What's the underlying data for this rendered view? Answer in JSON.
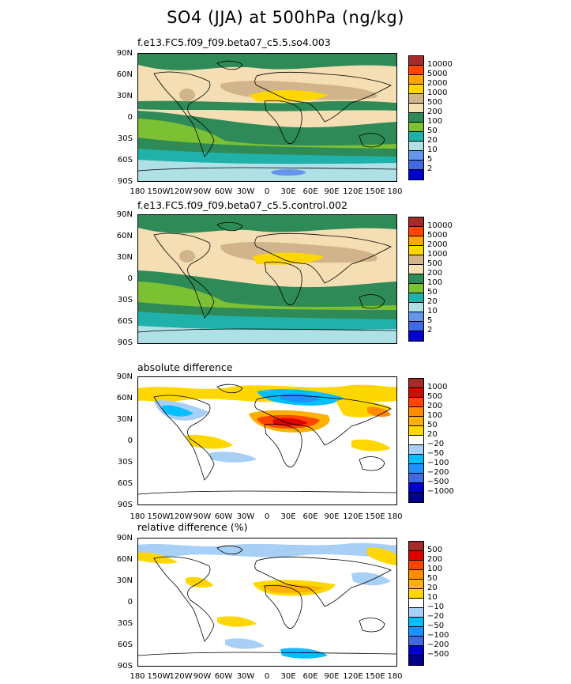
{
  "title": "SO4 (JJA) at 500hPa (ng/kg)",
  "lat_ticks": [
    "90N",
    "60N",
    "30N",
    "0",
    "30S",
    "60S",
    "90S"
  ],
  "lon_ticks": [
    "180",
    "150W",
    "120W",
    "90W",
    "60W",
    "30W",
    "0",
    "30E",
    "60E",
    "90E",
    "120E",
    "150E",
    "180"
  ],
  "panels": [
    {
      "title": "f.e13.FC5.f09_f09.beta07_c5.5.so4.003",
      "legend": [
        {
          "label": "10000",
          "color": "#a52a2a"
        },
        {
          "label": "5000",
          "color": "#ff4500"
        },
        {
          "label": "2000",
          "color": "#ffa500"
        },
        {
          "label": "1000",
          "color": "#ffd700"
        },
        {
          "label": "500",
          "color": "#d2b48c"
        },
        {
          "label": "200",
          "color": "#f5deb3"
        },
        {
          "label": "100",
          "color": "#2e8b57"
        },
        {
          "label": "50",
          "color": "#7cc034"
        },
        {
          "label": "20",
          "color": "#20b2aa"
        },
        {
          "label": "10",
          "color": "#afe0e6"
        },
        {
          "label": "5",
          "color": "#6495ed"
        },
        {
          "label": "2",
          "color": "#4169e1"
        },
        {
          "label": "",
          "color": "#0000cd"
        }
      ]
    },
    {
      "title": "f.e13.FC5.f09_f09.beta07_c5.5.control.002",
      "legend": [
        {
          "label": "10000",
          "color": "#a52a2a"
        },
        {
          "label": "5000",
          "color": "#ff4500"
        },
        {
          "label": "2000",
          "color": "#ffa500"
        },
        {
          "label": "1000",
          "color": "#ffd700"
        },
        {
          "label": "500",
          "color": "#d2b48c"
        },
        {
          "label": "200",
          "color": "#f5deb3"
        },
        {
          "label": "100",
          "color": "#2e8b57"
        },
        {
          "label": "50",
          "color": "#7cc034"
        },
        {
          "label": "20",
          "color": "#20b2aa"
        },
        {
          "label": "10",
          "color": "#afe0e6"
        },
        {
          "label": "5",
          "color": "#6495ed"
        },
        {
          "label": "2",
          "color": "#4169e1"
        },
        {
          "label": "",
          "color": "#0000cd"
        }
      ]
    },
    {
      "title": "absolute difference",
      "legend": [
        {
          "label": "1000",
          "color": "#a52a2a"
        },
        {
          "label": "500",
          "color": "#e00000"
        },
        {
          "label": "200",
          "color": "#ff4500"
        },
        {
          "label": "100",
          "color": "#ff8c00"
        },
        {
          "label": "50",
          "color": "#ffb000"
        },
        {
          "label": "20",
          "color": "#ffd700"
        },
        {
          "label": "−20",
          "color": "#ffffff"
        },
        {
          "label": "−50",
          "color": "#a8cff5"
        },
        {
          "label": "−100",
          "color": "#00bfff"
        },
        {
          "label": "−200",
          "color": "#1e90ff"
        },
        {
          "label": "−500",
          "color": "#4169e1"
        },
        {
          "label": "−1000",
          "color": "#0000cd"
        },
        {
          "label": "",
          "color": "#00008b"
        }
      ]
    },
    {
      "title": "relative difference (%)",
      "legend": [
        {
          "label": "500",
          "color": "#a52a2a"
        },
        {
          "label": "200",
          "color": "#e00000"
        },
        {
          "label": "100",
          "color": "#ff4500"
        },
        {
          "label": "50",
          "color": "#ff8c00"
        },
        {
          "label": "20",
          "color": "#ffb000"
        },
        {
          "label": "10",
          "color": "#ffd700"
        },
        {
          "label": "−10",
          "color": "#ffffff"
        },
        {
          "label": "−20",
          "color": "#a8cff5"
        },
        {
          "label": "−50",
          "color": "#00bfff"
        },
        {
          "label": "−100",
          "color": "#1e90ff"
        },
        {
          "label": "−200",
          "color": "#4169e1"
        },
        {
          "label": "−500",
          "color": "#0000cd"
        },
        {
          "label": "",
          "color": "#00008b"
        }
      ]
    }
  ]
}
